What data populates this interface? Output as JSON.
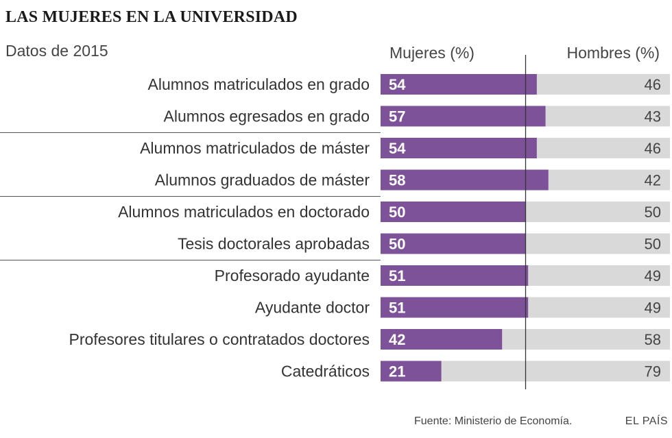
{
  "header": {
    "title": "LAS MUJERES EN LA UNIVERSIDAD",
    "subtitle": "Datos de 2015"
  },
  "footer": {
    "source": "Fuente: Ministerio de Economía.",
    "credit": "EL PAÍS"
  },
  "colors": {
    "women": "#7d5299",
    "men": "#d9d9d9",
    "center_line": "#333333",
    "separator": "#555555",
    "label_text": "#333333"
  },
  "chart_data": {
    "type": "bar",
    "orientation": "horizontal",
    "stacked": true,
    "title": "LAS MUJERES EN LA UNIVERSIDAD",
    "subtitle": "Datos de 2015",
    "categories": [
      "Alumnos matriculados en grado",
      "Alumnos egresados en grado",
      "Alumnos matriculados de máster",
      "Alumnos graduados de máster",
      "Alumnos matriculados en doctorado",
      "Tesis doctorales aprobadas",
      "Profesorado ayudante",
      "Ayudante doctor",
      "Profesores titulares o contratados doctores",
      "Catedráticos"
    ],
    "series": [
      {
        "name": "Mujeres (%)",
        "values": [
          54,
          57,
          54,
          58,
          50,
          50,
          51,
          51,
          42,
          21
        ]
      },
      {
        "name": "Hombres (%)",
        "values": [
          46,
          43,
          46,
          42,
          50,
          50,
          49,
          49,
          58,
          79
        ]
      }
    ],
    "xlim": [
      0,
      100
    ],
    "reference_line": 50,
    "group_separators_after": [
      1,
      3,
      5
    ],
    "legend": "top"
  }
}
